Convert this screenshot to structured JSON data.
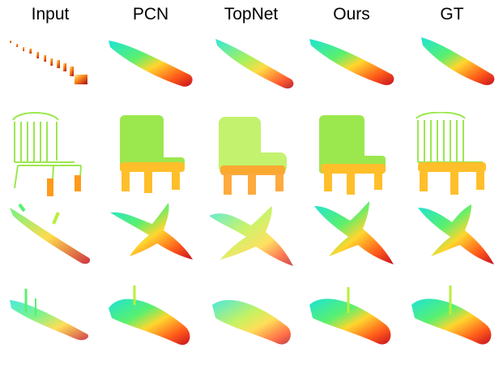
{
  "figure": {
    "columns": [
      {
        "label": "Input"
      },
      {
        "label": "PCN"
      },
      {
        "label": "TopNet"
      },
      {
        "label": "Ours"
      },
      {
        "label": "GT"
      }
    ],
    "rows": [
      {
        "object": "boat"
      },
      {
        "object": "chair"
      },
      {
        "object": "airplane"
      },
      {
        "object": "boat"
      }
    ],
    "colormap": [
      "#1de3d6",
      "#59f06f",
      "#b8ef3a",
      "#ffd62e",
      "#ff8a1a",
      "#e51f1f",
      "#a20b16"
    ]
  }
}
